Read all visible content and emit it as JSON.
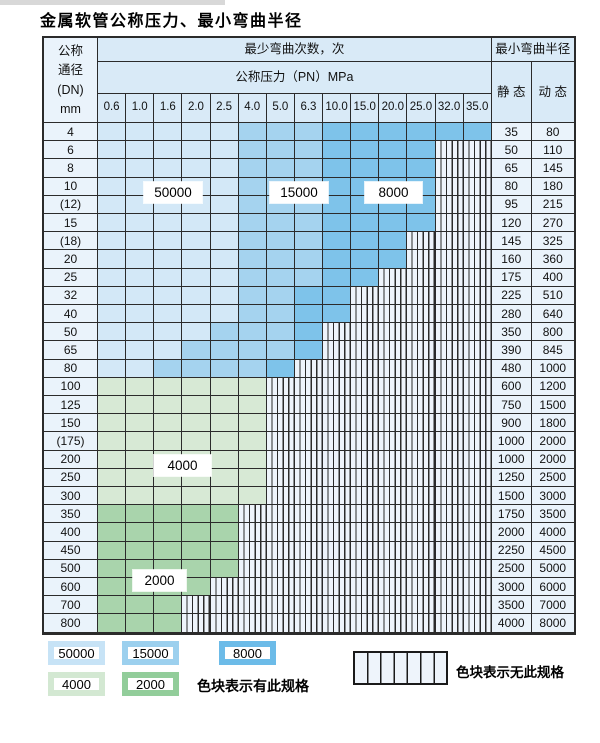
{
  "title": "金属软管公称压力、最小弯曲半径",
  "table": {
    "corner": {
      "line1": "公称",
      "line2": "通径",
      "line3": "(DN)",
      "line4": "mm"
    },
    "bend_times_header": "最少弯曲次数，次",
    "pressure_header": "公称压力（PN）MPa",
    "radius_header": "最小弯曲半径",
    "static_label": "静 态",
    "dynamic_label": "动 态",
    "pressures": [
      "0.6",
      "1.0",
      "1.6",
      "2.0",
      "2.5",
      "4.0",
      "5.0",
      "6.3",
      "10.0",
      "15.0",
      "20.0",
      "25.0",
      "32.0",
      "35.0"
    ],
    "rows": [
      {
        "dn": "4",
        "segs": [
          [
            "b50",
            5
          ],
          [
            "b15",
            3
          ],
          [
            "b8",
            6
          ]
        ],
        "static": "35",
        "dynamic": "80"
      },
      {
        "dn": "6",
        "segs": [
          [
            "b50",
            5
          ],
          [
            "b15",
            3
          ],
          [
            "b8",
            4
          ]
        ],
        "static": "50",
        "dynamic": "110"
      },
      {
        "dn": "8",
        "segs": [
          [
            "b50",
            5
          ],
          [
            "b15",
            3
          ],
          [
            "b8",
            4
          ]
        ],
        "static": "65",
        "dynamic": "145"
      },
      {
        "dn": "10",
        "segs": [
          [
            "b50",
            5
          ],
          [
            "b15",
            3
          ],
          [
            "b8",
            4
          ]
        ],
        "static": "80",
        "dynamic": "180"
      },
      {
        "dn": "(12)",
        "segs": [
          [
            "b50",
            5
          ],
          [
            "b15",
            3
          ],
          [
            "b8",
            4
          ]
        ],
        "static": "95",
        "dynamic": "215"
      },
      {
        "dn": "15",
        "segs": [
          [
            "b50",
            5
          ],
          [
            "b15",
            3
          ],
          [
            "b8",
            4
          ]
        ],
        "static": "120",
        "dynamic": "270"
      },
      {
        "dn": "(18)",
        "segs": [
          [
            "b50",
            5
          ],
          [
            "b15",
            3
          ],
          [
            "b8",
            3
          ]
        ],
        "static": "145",
        "dynamic": "325"
      },
      {
        "dn": "20",
        "segs": [
          [
            "b50",
            5
          ],
          [
            "b15",
            3
          ],
          [
            "b8",
            3
          ]
        ],
        "static": "160",
        "dynamic": "360"
      },
      {
        "dn": "25",
        "segs": [
          [
            "b50",
            5
          ],
          [
            "b15",
            3
          ],
          [
            "b8",
            2
          ]
        ],
        "static": "175",
        "dynamic": "400"
      },
      {
        "dn": "32",
        "segs": [
          [
            "b50",
            5
          ],
          [
            "b15",
            2
          ],
          [
            "b8",
            2
          ]
        ],
        "static": "225",
        "dynamic": "510"
      },
      {
        "dn": "40",
        "segs": [
          [
            "b50",
            5
          ],
          [
            "b15",
            2
          ],
          [
            "b8",
            2
          ]
        ],
        "static": "280",
        "dynamic": "640"
      },
      {
        "dn": "50",
        "segs": [
          [
            "b50",
            4
          ],
          [
            "b15",
            3
          ],
          [
            "b8",
            1
          ]
        ],
        "static": "350",
        "dynamic": "800"
      },
      {
        "dn": "65",
        "segs": [
          [
            "b50",
            3
          ],
          [
            "b15",
            4
          ],
          [
            "b8",
            1
          ]
        ],
        "static": "390",
        "dynamic": "845"
      },
      {
        "dn": "80",
        "segs": [
          [
            "b50",
            2
          ],
          [
            "b15",
            4
          ],
          [
            "b8",
            1
          ]
        ],
        "static": "480",
        "dynamic": "1000"
      },
      {
        "dn": "100",
        "segs": [
          [
            "g4",
            6
          ]
        ],
        "static": "600",
        "dynamic": "1200"
      },
      {
        "dn": "125",
        "segs": [
          [
            "g4",
            6
          ]
        ],
        "static": "750",
        "dynamic": "1500"
      },
      {
        "dn": "150",
        "segs": [
          [
            "g4",
            6
          ]
        ],
        "static": "900",
        "dynamic": "1800"
      },
      {
        "dn": "(175)",
        "segs": [
          [
            "g4",
            6
          ]
        ],
        "static": "1000",
        "dynamic": "2000"
      },
      {
        "dn": "200",
        "segs": [
          [
            "g4",
            6
          ]
        ],
        "static": "1000",
        "dynamic": "2000"
      },
      {
        "dn": "250",
        "segs": [
          [
            "g4",
            6
          ]
        ],
        "static": "1250",
        "dynamic": "2500"
      },
      {
        "dn": "300",
        "segs": [
          [
            "g4",
            6
          ]
        ],
        "static": "1500",
        "dynamic": "3000"
      },
      {
        "dn": "350",
        "segs": [
          [
            "g2",
            5
          ]
        ],
        "static": "1750",
        "dynamic": "3500"
      },
      {
        "dn": "400",
        "segs": [
          [
            "g2",
            5
          ]
        ],
        "static": "2000",
        "dynamic": "4000"
      },
      {
        "dn": "450",
        "segs": [
          [
            "g2",
            5
          ]
        ],
        "static": "2250",
        "dynamic": "4500"
      },
      {
        "dn": "500",
        "segs": [
          [
            "g2",
            5
          ]
        ],
        "static": "2500",
        "dynamic": "5000"
      },
      {
        "dn": "600",
        "segs": [
          [
            "g2",
            4
          ]
        ],
        "static": "3000",
        "dynamic": "6000"
      },
      {
        "dn": "700",
        "segs": [
          [
            "g2",
            3
          ]
        ],
        "static": "3500",
        "dynamic": "7000"
      },
      {
        "dn": "800",
        "segs": [
          [
            "g2",
            3
          ]
        ],
        "static": "4000",
        "dynamic": "8000"
      }
    ]
  },
  "overlays": [
    {
      "label": "50000"
    },
    {
      "label": "15000"
    },
    {
      "label": "8000"
    },
    {
      "label": "4000"
    },
    {
      "label": "2000"
    }
  ],
  "legend": {
    "items": [
      {
        "label": "50000",
        "color": "#c7e3f6"
      },
      {
        "label": "15000",
        "color": "#9cd0ee"
      },
      {
        "label": "8000",
        "color": "#6cbbe8"
      },
      {
        "label": "4000",
        "color": "#d3e8d2"
      },
      {
        "label": "2000",
        "color": "#92cd9a"
      }
    ],
    "has_spec_text": "色块表示有此规格",
    "no_spec_text": "色块表示无此规格"
  },
  "colors": {
    "blue_50000": "#d3e8f7",
    "blue_15000": "#a5d3ef",
    "blue_8000": "#7ec3ea",
    "green_4000": "#d7e9d5",
    "green_2000": "#a9d4ac",
    "header_bg": "#d9eaf7",
    "label_bg": "#eaf3fb",
    "hatch_bg": "#eef4fb",
    "grid_line": "#2b2b2b"
  }
}
